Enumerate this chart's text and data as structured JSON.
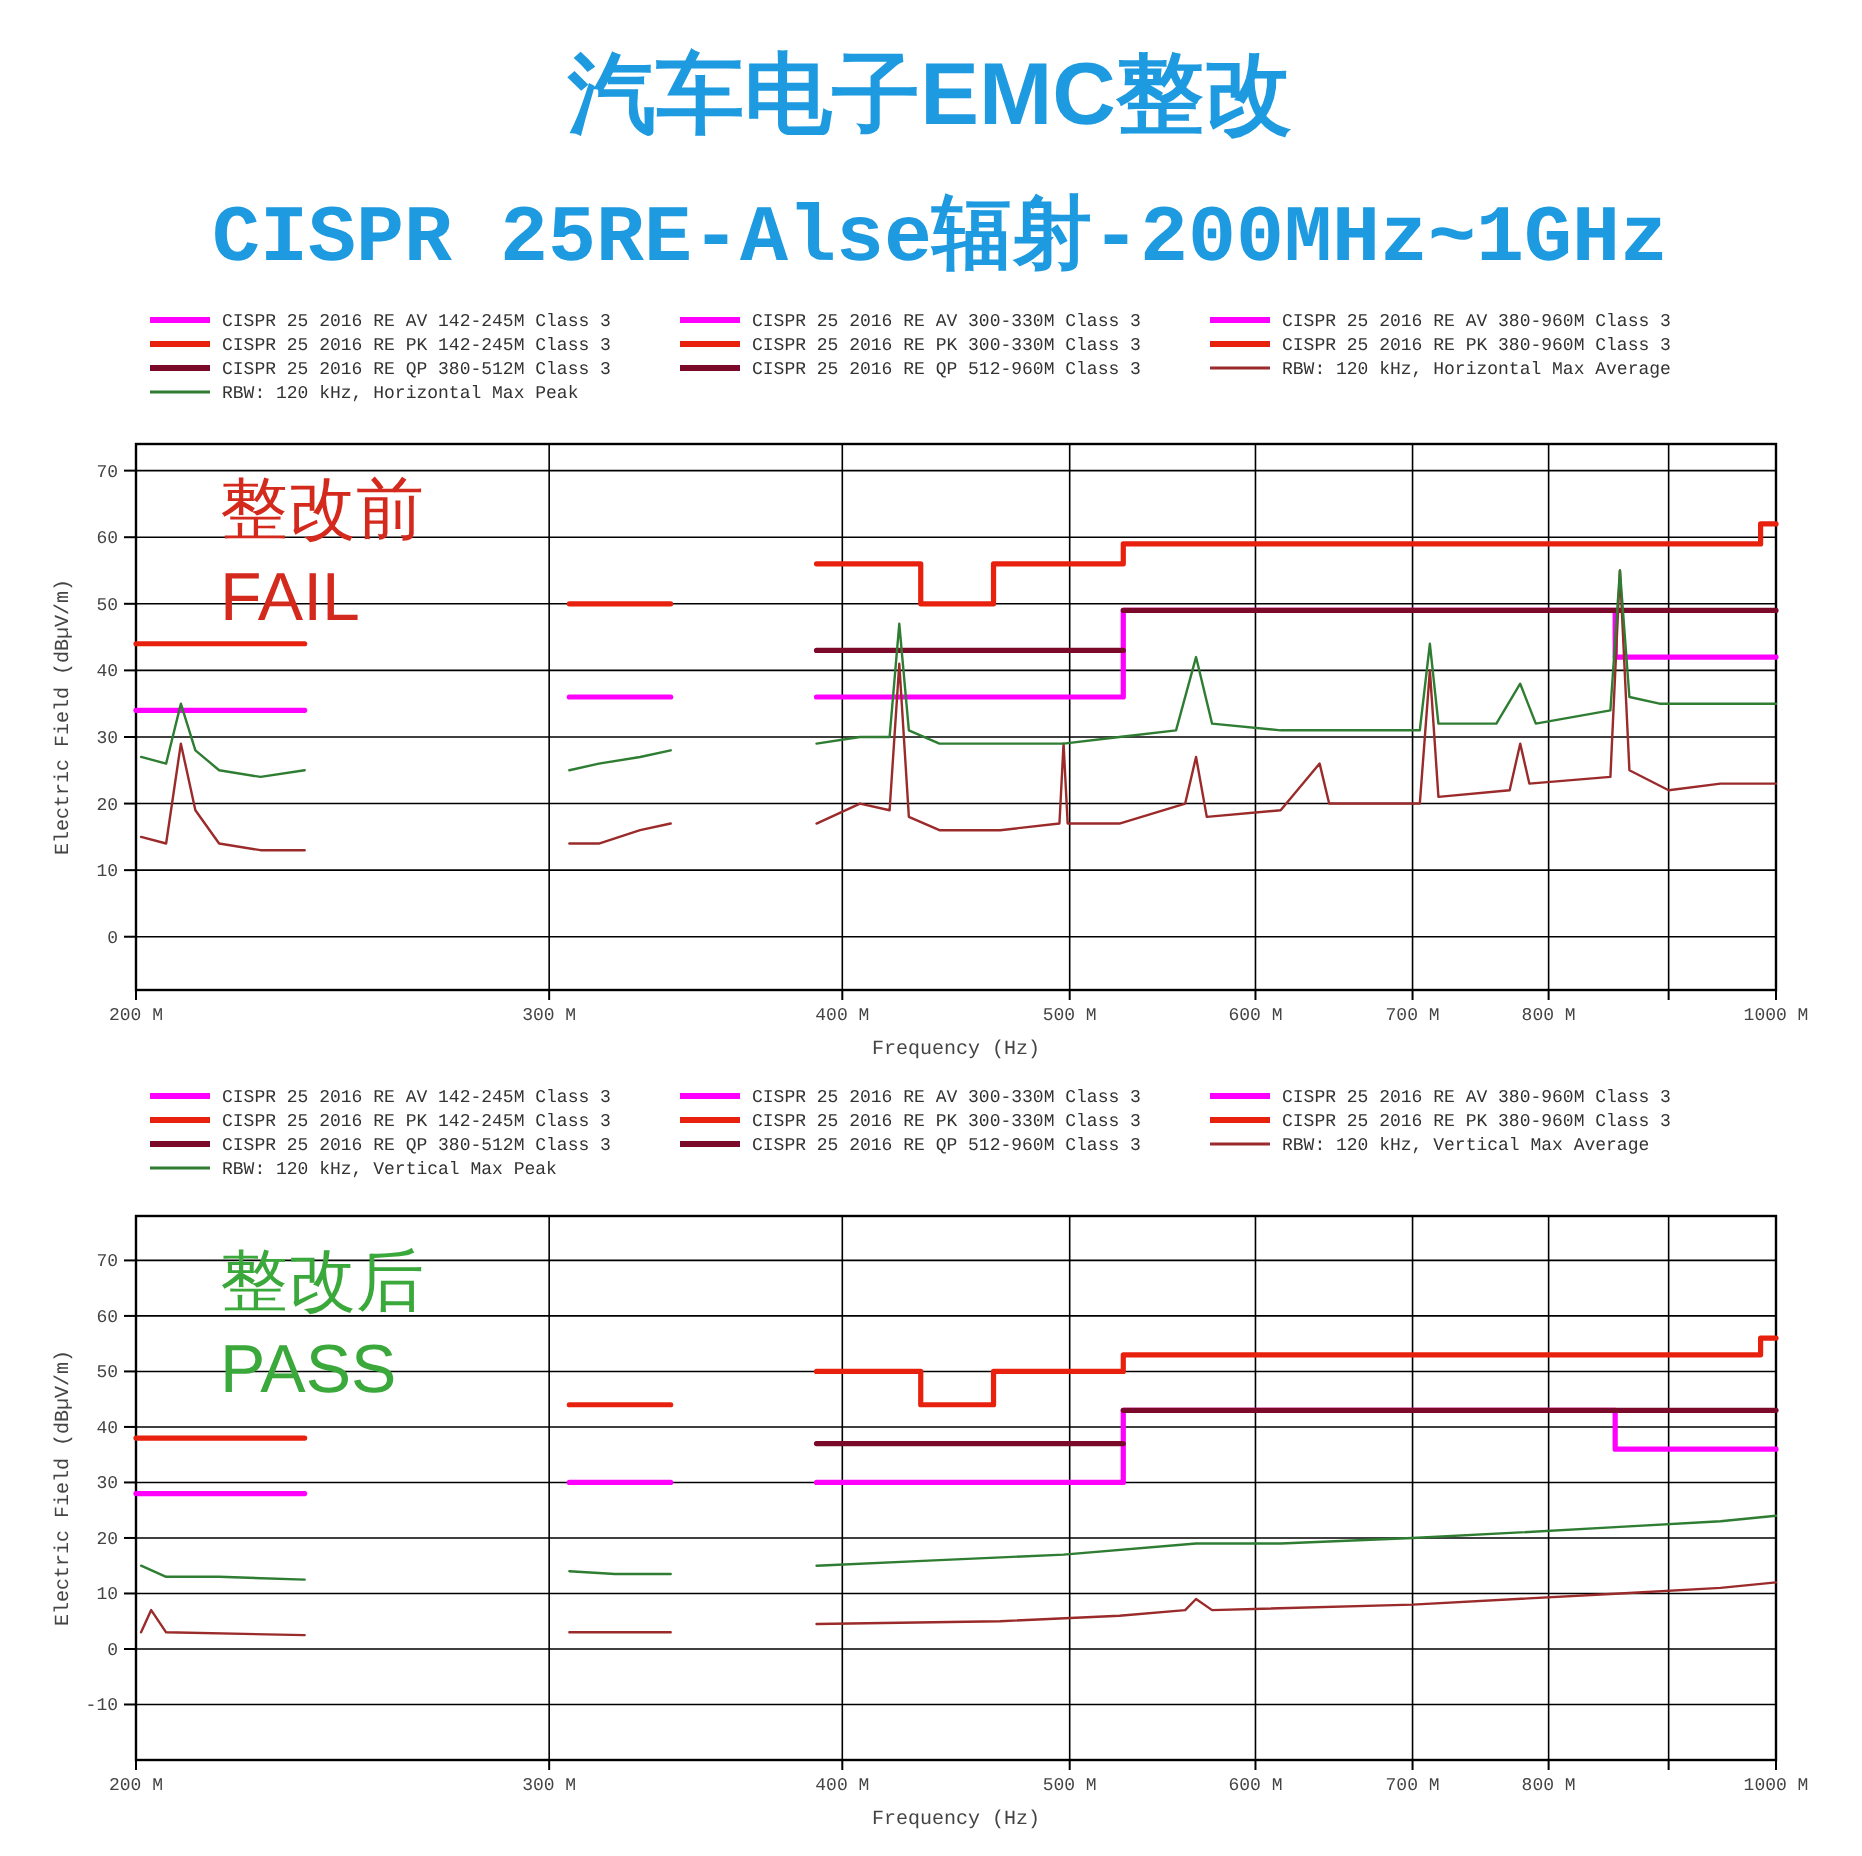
{
  "chart_data": [
    {
      "type": "line",
      "title": "汽车电子EMC整改",
      "subtitle": "CISPR 25RE-Alse辐射-200MHz~1GHz",
      "annotations": [
        "整改前",
        "FAIL"
      ],
      "xlabel": "Frequency (Hz)",
      "ylabel": "Electric Field (dBµV/m)",
      "log": "x",
      "grid": true,
      "legend": "top",
      "xlim": [
        200,
        1000
      ],
      "xticks": [
        {
          "value": 200,
          "label": "200 M"
        },
        {
          "value": 300,
          "label": "300 M"
        },
        {
          "value": 400,
          "label": "400 M"
        },
        {
          "value": 500,
          "label": "500 M"
        },
        {
          "value": 600,
          "label": "600 M"
        },
        {
          "value": 700,
          "label": "700 M"
        },
        {
          "value": 800,
          "label": "800 M"
        },
        {
          "value": 900,
          "label": null
        },
        {
          "value": 1000,
          "label": "1000 M"
        }
      ],
      "ylim": [
        -8,
        74
      ],
      "yticks": [
        0,
        10,
        20,
        30,
        40,
        50,
        60,
        70
      ],
      "series": [
        {
          "name": "CISPR 25 2016 RE AV 142-245M Class 3",
          "type": "step",
          "color": "#ff00ff",
          "x": [
            200,
            236
          ],
          "values": [
            34,
            34
          ]
        },
        {
          "name": "CISPR 25 2016 RE AV 300-330M Class 3",
          "type": "step",
          "color": "#ff00ff",
          "x": [
            306,
            338
          ],
          "values": [
            36,
            36
          ]
        },
        {
          "name": "CISPR 25 2016 RE AV 380-960M Class 3",
          "type": "step",
          "color": "#ff00ff",
          "x": [
            390,
            527,
            854,
            1000
          ],
          "values": [
            36,
            49,
            42,
            42
          ]
        },
        {
          "name": "CISPR 25 2016 RE PK 142-245M Class 3",
          "type": "step",
          "color": "#e8200e",
          "x": [
            200,
            236
          ],
          "values": [
            44,
            44
          ]
        },
        {
          "name": "CISPR 25 2016 RE PK 300-330M Class 3",
          "type": "step",
          "color": "#e8200e",
          "x": [
            306,
            338
          ],
          "values": [
            50,
            50
          ]
        },
        {
          "name": "CISPR 25 2016 RE PK 380-960M Class 3",
          "type": "step",
          "color": "#e8200e",
          "x": [
            390,
            432,
            464,
            527,
            985,
            1000
          ],
          "values": [
            56,
            50,
            56,
            59,
            62,
            62
          ]
        },
        {
          "name": "CISPR 25 2016 RE QP 380-512M Class 3",
          "type": "step",
          "color": "#7b0a2a",
          "x": [
            390,
            527
          ],
          "values": [
            43,
            43
          ]
        },
        {
          "name": "CISPR 25 2016 RE QP 512-960M Class 3",
          "type": "step",
          "color": "#7b0a2a",
          "x": [
            527,
            1000
          ],
          "values": [
            49,
            49
          ]
        },
        {
          "name": "RBW: 120 kHz, Horizontal Max Average",
          "type": "line",
          "color": "#9b2a2a",
          "x": [
            201,
            206,
            209,
            212,
            217,
            226,
            236,
            270,
            306,
            315,
            328,
            338,
            365,
            390,
            407,
            419,
            423,
            427,
            440,
            467,
            495,
            497,
            499,
            525,
            560,
            566,
            572,
            615,
            639,
            645,
            705,
            712,
            718,
            770,
            778,
            785,
            850,
            858,
            866,
            900,
            947,
            1000
          ],
          "values": [
            15,
            14,
            29,
            19,
            14,
            13,
            13,
            null,
            14,
            14,
            16,
            17,
            null,
            17,
            20,
            19,
            41,
            18,
            16,
            16,
            17,
            29,
            17,
            17,
            20,
            27,
            18,
            19,
            26,
            20,
            20,
            40,
            21,
            22,
            29,
            23,
            24,
            55,
            25,
            22,
            23,
            23
          ]
        },
        {
          "name": "RBW: 120 kHz, Horizontal Max Peak",
          "type": "line",
          "color": "#2e7d32",
          "x": [
            201,
            206,
            209,
            212,
            217,
            226,
            236,
            270,
            306,
            315,
            328,
            338,
            365,
            390,
            407,
            419,
            423,
            427,
            440,
            467,
            497,
            525,
            555,
            566,
            575,
            615,
            660,
            705,
            712,
            718,
            760,
            778,
            790,
            850,
            858,
            866,
            892,
            947,
            1000
          ],
          "values": [
            27,
            26,
            35,
            28,
            25,
            24,
            25,
            null,
            25,
            26,
            27,
            28,
            null,
            29,
            30,
            30,
            47,
            31,
            29,
            29,
            29,
            30,
            31,
            42,
            32,
            31,
            31,
            31,
            44,
            32,
            32,
            38,
            32,
            34,
            55,
            36,
            35,
            35,
            35
          ]
        }
      ]
    },
    {
      "type": "line",
      "annotations": [
        "整改后",
        "PASS"
      ],
      "xlabel": "Frequency (Hz)",
      "ylabel": "Electric Field (dBµV/m)",
      "log": "x",
      "grid": true,
      "legend": "top",
      "xlim": [
        200,
        1000
      ],
      "xticks": [
        {
          "value": 200,
          "label": "200 M"
        },
        {
          "value": 300,
          "label": "300 M"
        },
        {
          "value": 400,
          "label": "400 M"
        },
        {
          "value": 500,
          "label": "500 M"
        },
        {
          "value": 600,
          "label": "600 M"
        },
        {
          "value": 700,
          "label": "700 M"
        },
        {
          "value": 800,
          "label": "800 M"
        },
        {
          "value": 900,
          "label": null
        },
        {
          "value": 1000,
          "label": "1000 M"
        }
      ],
      "ylim": [
        -20,
        78
      ],
      "yticks": [
        -10,
        0,
        10,
        20,
        30,
        40,
        50,
        60,
        70
      ],
      "series": [
        {
          "name": "CISPR 25 2016 RE AV 142-245M Class 3",
          "type": "step",
          "color": "#ff00ff",
          "x": [
            200,
            236
          ],
          "values": [
            28,
            28
          ]
        },
        {
          "name": "CISPR 25 2016 RE AV 300-330M Class 3",
          "type": "step",
          "color": "#ff00ff",
          "x": [
            306,
            338
          ],
          "values": [
            30,
            30
          ]
        },
        {
          "name": "CISPR 25 2016 RE AV 380-960M Class 3",
          "type": "step",
          "color": "#ff00ff",
          "x": [
            390,
            527,
            854,
            1000
          ],
          "values": [
            30,
            43,
            36,
            36
          ]
        },
        {
          "name": "CISPR 25 2016 RE PK 142-245M Class 3",
          "type": "step",
          "color": "#e8200e",
          "x": [
            200,
            236
          ],
          "values": [
            38,
            38
          ]
        },
        {
          "name": "CISPR 25 2016 RE PK 300-330M Class 3",
          "type": "step",
          "color": "#e8200e",
          "x": [
            306,
            338
          ],
          "values": [
            44,
            44
          ]
        },
        {
          "name": "CISPR 25 2016 RE PK 380-960M Class 3",
          "type": "step",
          "color": "#e8200e",
          "x": [
            390,
            432,
            464,
            527,
            985,
            1000
          ],
          "values": [
            50,
            44,
            50,
            53,
            56,
            56
          ]
        },
        {
          "name": "CISPR 25 2016 RE QP 380-512M Class 3",
          "type": "step",
          "color": "#7b0a2a",
          "x": [
            390,
            527
          ],
          "values": [
            37,
            37
          ]
        },
        {
          "name": "CISPR 25 2016 RE QP 512-960M Class 3",
          "type": "step",
          "color": "#7b0a2a",
          "x": [
            527,
            1000
          ],
          "values": [
            43,
            43
          ]
        },
        {
          "name": "RBW: 120 kHz, Vertical Max Average",
          "type": "line",
          "color": "#9b2a2a",
          "x": [
            201,
            203,
            206,
            236,
            270,
            306,
            338,
            365,
            390,
            467,
            525,
            560,
            566,
            575,
            700,
            858,
            947,
            1000
          ],
          "values": [
            3,
            7,
            3,
            2.5,
            null,
            3,
            3,
            null,
            4.5,
            5,
            6,
            7,
            9,
            7,
            8,
            10,
            11,
            12
          ]
        },
        {
          "name": "RBW: 120 kHz, Vertical Max Peak",
          "type": "line",
          "color": "#2e7d32",
          "x": [
            201,
            206,
            217,
            236,
            270,
            306,
            320,
            338,
            365,
            390,
            440,
            497,
            566,
            615,
            700,
            778,
            858,
            947,
            1000
          ],
          "values": [
            15,
            13,
            13,
            12.5,
            null,
            14,
            13.5,
            13.5,
            null,
            15,
            16,
            17,
            19,
            19,
            20,
            21,
            22,
            23,
            24
          ]
        }
      ]
    }
  ]
}
